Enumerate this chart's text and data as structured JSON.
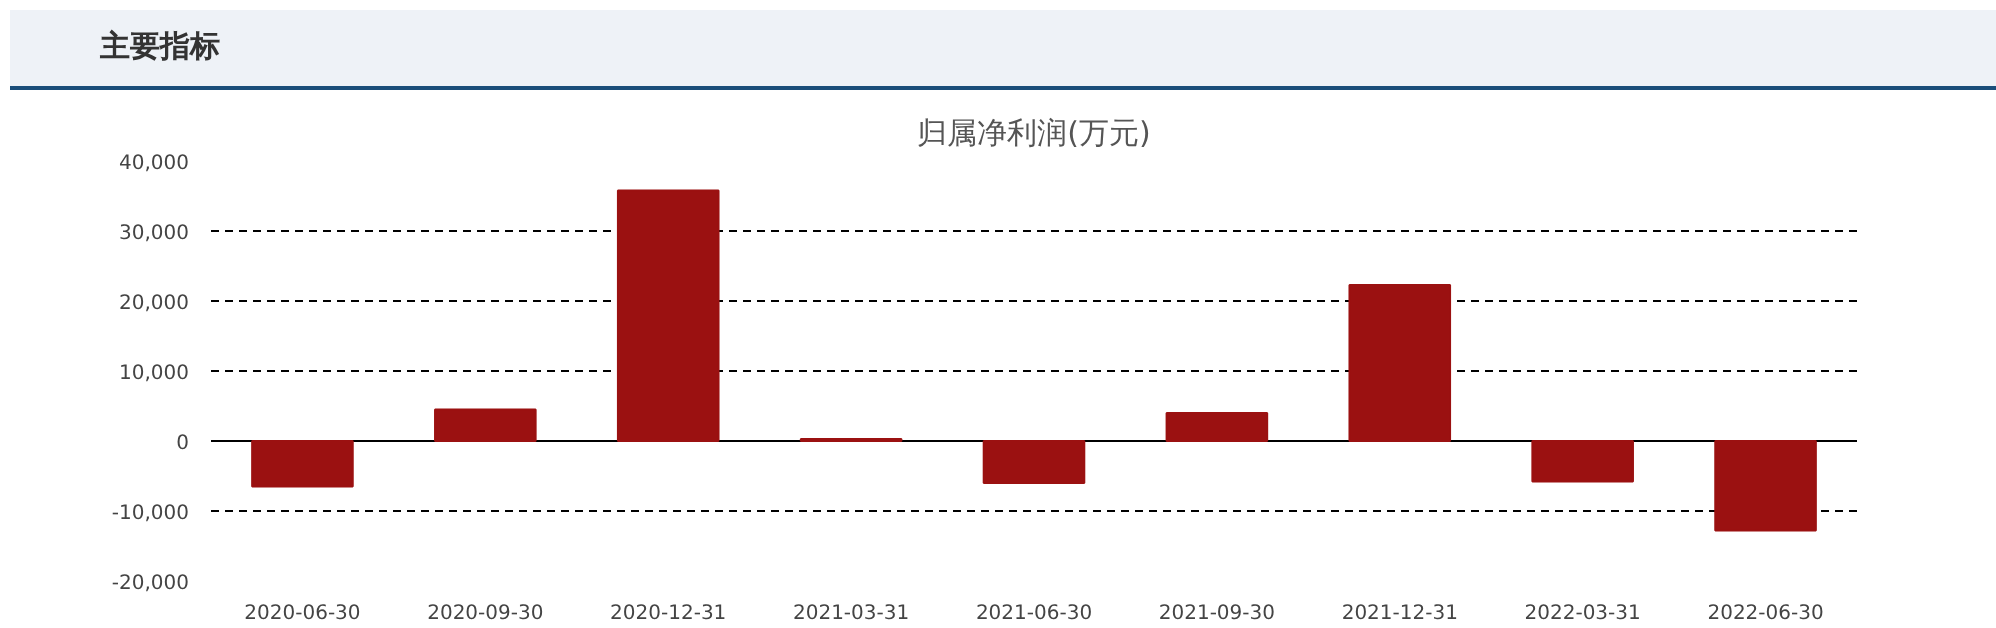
{
  "chart_data": {
    "type": "bar",
    "title": "归属净利润(万元)",
    "annotations": [
      "主要指标"
    ],
    "categories": [
      "2020-06-30",
      "2020-09-30",
      "2020-12-31",
      "2021-03-31",
      "2021-06-30",
      "2021-09-30",
      "2021-12-31",
      "2022-03-31",
      "2022-06-30"
    ],
    "values": [
      -6500,
      4500,
      35800,
      300,
      -6000,
      4000,
      22300,
      -5800,
      -12800
    ],
    "color": "#9b1111",
    "ylim": [
      -20000,
      40000
    ],
    "yticks": [
      {
        "value": -20000,
        "label": "-20,000"
      },
      {
        "value": -10000,
        "label": "-10,000"
      },
      0,
      {
        "value": 10000,
        "label": "10,000"
      },
      {
        "value": 20000,
        "label": "20,000"
      },
      {
        "value": 30000,
        "label": "30,000"
      },
      {
        "value": 40000,
        "label": "40,000"
      }
    ],
    "grid": "y",
    "ref_lines": [
      {
        "axis": "y",
        "value": 0,
        "color": "#000000",
        "line_style": "solid"
      }
    ]
  }
}
